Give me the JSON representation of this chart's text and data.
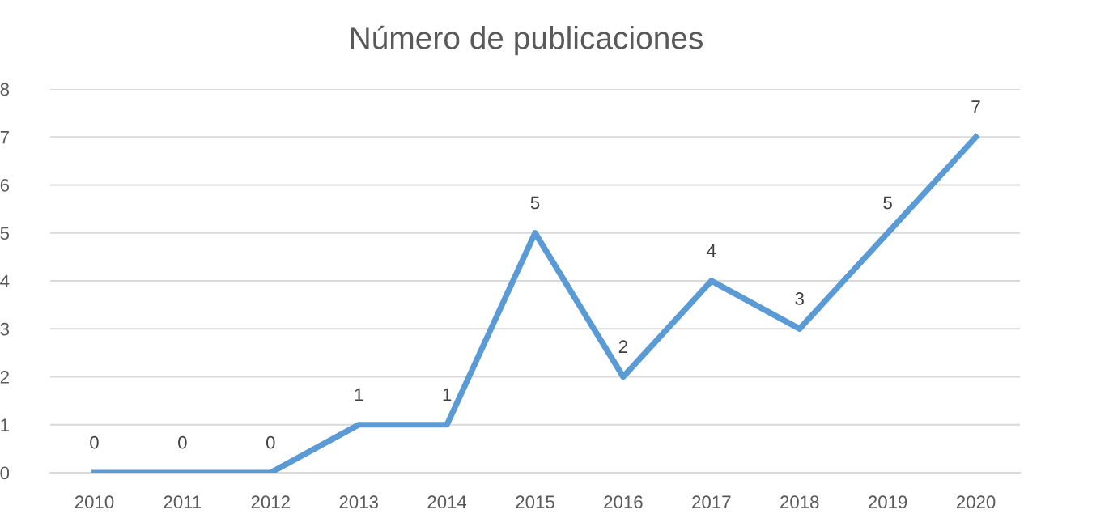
{
  "chart_data": {
    "type": "line",
    "title": "Número de publicaciones",
    "categories": [
      "2010",
      "2011",
      "2012",
      "2013",
      "2014",
      "2015",
      "2016",
      "2017",
      "2018",
      "2019",
      "2020"
    ],
    "series": [
      {
        "color": "#5b9bd5",
        "values": [
          0,
          0,
          0,
          1,
          1,
          5,
          2,
          4,
          3,
          5,
          7
        ]
      }
    ],
    "ylim": [
      0,
      8
    ],
    "yticks": [
      0,
      1,
      2,
      3,
      4,
      5,
      6,
      7,
      8
    ],
    "grid": "y",
    "data_labels": true,
    "marker": "none",
    "line_style": "solid"
  }
}
